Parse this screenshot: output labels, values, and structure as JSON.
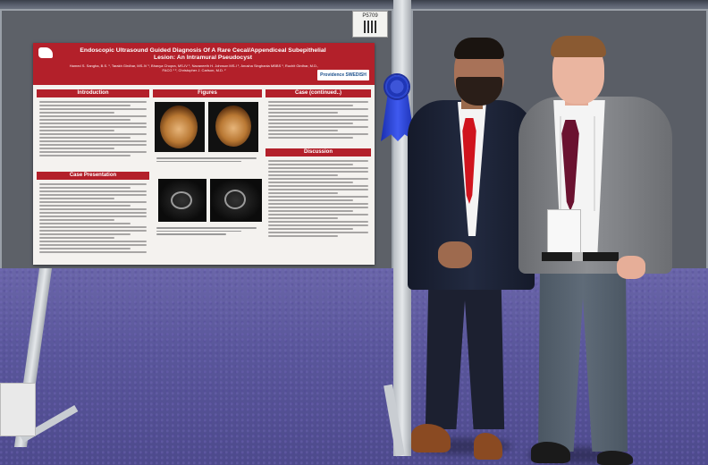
{
  "booth": {
    "board_number": "P5709"
  },
  "poster": {
    "title": "Endoscopic Ultrasound Guided Diagnosis Of A Rare Cecal/Appendiceal Subepithelial Lesion: An Intramural Pseudocyst",
    "authors": "Hamed S. Sangha, B.S. ¹, Tarakh Girdhar, MS-IV ¹, Bhavya Chopra, MS-IV ¹, Navaneeth H. Johnson MS-I ¹, Anusha Singhania MBBS ¹, Ruchit Girdhar, M.D., FACG ¹ ², Christopher J. Carlson, M.D. ²",
    "badge": "Providence SWEDISH",
    "sections": {
      "introduction": "Introduction",
      "figures": "Figures",
      "case_continued": "Case (continued..)",
      "case_presentation": "Case Presentation",
      "discussion": "Discussion"
    }
  },
  "colors": {
    "poster_accent": "#b3202a",
    "ribbon": "#2c47d0",
    "carpet": "#5a579b",
    "backdrop": "#5d6168"
  }
}
